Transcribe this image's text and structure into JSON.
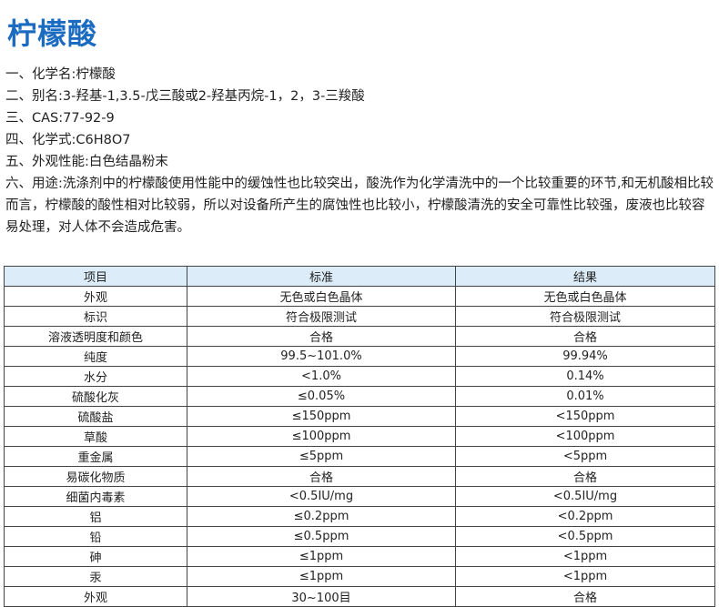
{
  "title": "柠檬酸",
  "lines": [
    "一、化学名:柠檬酸",
    "二、别名:3-羟基-1,3.5-戊三酸或2-羟基丙烷-1，2，3-三羧酸",
    "三、CAS:77-92-9",
    "四、化学式:C6H8O7",
    "五、外观性能:白色结晶粉末",
    "六、用途:洗涤剂中的柠檬酸使用性能中的缓蚀性也比较突出，酸洗作为化学清洗中的一个比较重要的环节,和无机酸相比较而言，柠檬酸的酸性相对比较弱，所以对设备所产生的腐蚀性也比较小，柠檬酸清洗的安全可靠性比较强，废液也比较容易处理，对人体不会造成危害。"
  ],
  "table": {
    "headers": [
      "项目",
      "标准",
      "结果"
    ],
    "rows": [
      [
        "外观",
        "无色或白色晶体",
        "无色或白色晶体"
      ],
      [
        "标识",
        "符合极限测试",
        "符合极限测试"
      ],
      [
        "溶液透明度和颜色",
        "合格",
        "合格"
      ],
      [
        "纯度",
        "99.5~101.0%",
        "99.94%"
      ],
      [
        "水分",
        "<1.0%",
        "0.14%"
      ],
      [
        "硫酸化灰",
        "≤0.05%",
        "0.01%"
      ],
      [
        "硫酸盐",
        "≤150ppm",
        "<150ppm"
      ],
      [
        "草酸",
        "≤100ppm",
        "<100ppm"
      ],
      [
        "重金属",
        "≤5ppm",
        "<5ppm"
      ],
      [
        "易碳化物质",
        "合格",
        "合格"
      ],
      [
        "细菌内毒素",
        "<0.5IU/mg",
        "<0.5IU/mg"
      ],
      [
        "铝",
        "≤0.2ppm",
        "<0.2ppm"
      ],
      [
        "铅",
        "≤0.5ppm",
        "<0.5ppm"
      ],
      [
        "砷",
        "≤1ppm",
        "<1ppm"
      ],
      [
        "汞",
        "≤1ppm",
        "<1ppm"
      ],
      [
        "外观",
        "30~100目",
        "合格"
      ]
    ]
  }
}
